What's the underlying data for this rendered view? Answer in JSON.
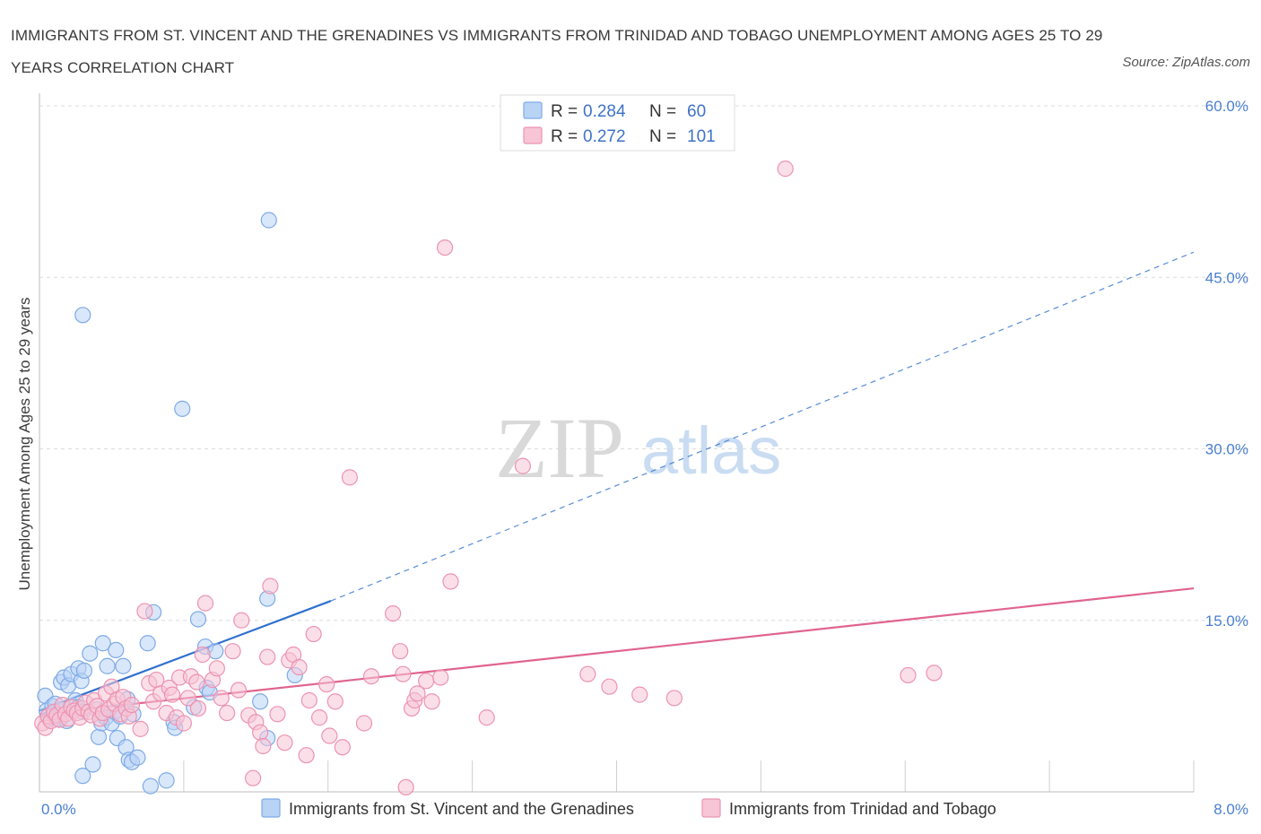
{
  "title": "IMMIGRANTS FROM ST. VINCENT AND THE GRENADINES VS IMMIGRANTS FROM TRINIDAD AND TOBAGO UNEMPLOYMENT AMONG AGES 25 TO 29 YEARS CORRELATION CHART",
  "source": "Source: ZipAtlas.com",
  "watermark": {
    "zip": "ZIP",
    "atlas": "atlas"
  },
  "legend": {
    "rows": [
      {
        "r_label": "R =",
        "r_value": "0.284",
        "n_label": "N =",
        "n_value": "60"
      },
      {
        "r_label": "R =",
        "r_value": "0.272",
        "n_label": "N =",
        "n_value": "101"
      }
    ]
  },
  "colors": {
    "blue_fill": "#b9d3f5",
    "blue_stroke": "#7eaae6",
    "blue_line": "#2f6fce",
    "pink_fill": "#f7c5d5",
    "pink_stroke": "#ec93b1",
    "pink_line": "#e0648f",
    "tick_label": "#4a7fd0",
    "grid": "#dcdcdc"
  },
  "chart_data": {
    "type": "scatter",
    "title": "IMMIGRANTS FROM ST. VINCENT AND THE GRENADINES VS IMMIGRANTS FROM TRINIDAD AND TOBAGO UNEMPLOYMENT AMONG AGES 25 TO 29 YEARS CORRELATION CHART",
    "xlabel": "",
    "ylabel": "Unemployment Among Ages 25 to 29 years",
    "xlim": [
      0,
      8
    ],
    "ylim": [
      0,
      60
    ],
    "x_tick_labels": [
      "0.0%",
      "8.0%"
    ],
    "y_ticks": [
      15,
      30,
      45,
      60
    ],
    "y_tick_labels": [
      "15.0%",
      "30.0%",
      "45.0%",
      "60.0%"
    ],
    "grid": true,
    "legend_position": "top-center",
    "series": [
      {
        "name": "Immigrants from St. Vincent and the Grenadines",
        "color": "blue",
        "R": 0.284,
        "N": 60,
        "trend": {
          "x0": 0.0,
          "y0": 7.1,
          "x1": 2.02,
          "y1": 16.7,
          "dashed_to_x": 8.0,
          "dashed_to_y": 47.2
        },
        "points": [
          [
            0.04,
            8.4
          ],
          [
            0.05,
            7.1
          ],
          [
            0.07,
            6.4
          ],
          [
            0.09,
            7.5
          ],
          [
            0.1,
            6.7
          ],
          [
            0.11,
            7.7
          ],
          [
            0.13,
            6.4
          ],
          [
            0.15,
            7.2
          ],
          [
            0.15,
            9.6
          ],
          [
            0.17,
            10.0
          ],
          [
            0.19,
            6.2
          ],
          [
            0.2,
            9.3
          ],
          [
            0.22,
            10.3
          ],
          [
            0.23,
            7.5
          ],
          [
            0.25,
            8.0
          ],
          [
            0.27,
            10.8
          ],
          [
            0.27,
            7.4
          ],
          [
            0.29,
            9.7
          ],
          [
            0.3,
            7.0
          ],
          [
            0.3,
            41.7
          ],
          [
            0.3,
            1.4
          ],
          [
            0.31,
            10.6
          ],
          [
            0.35,
            12.1
          ],
          [
            0.37,
            2.4
          ],
          [
            0.4,
            7.2
          ],
          [
            0.41,
            4.8
          ],
          [
            0.43,
            6.0
          ],
          [
            0.44,
            13.0
          ],
          [
            0.46,
            6.5
          ],
          [
            0.47,
            11.0
          ],
          [
            0.5,
            6.0
          ],
          [
            0.52,
            7.0
          ],
          [
            0.53,
            12.4
          ],
          [
            0.54,
            4.7
          ],
          [
            0.56,
            6.6
          ],
          [
            0.58,
            11.0
          ],
          [
            0.6,
            3.9
          ],
          [
            0.61,
            8.1
          ],
          [
            0.62,
            2.8
          ],
          [
            0.64,
            2.6
          ],
          [
            0.65,
            6.8
          ],
          [
            0.68,
            3.0
          ],
          [
            0.75,
            13.0
          ],
          [
            0.77,
            0.5
          ],
          [
            0.79,
            15.7
          ],
          [
            0.88,
            1.0
          ],
          [
            0.93,
            6.1
          ],
          [
            0.94,
            5.6
          ],
          [
            0.99,
            33.5
          ],
          [
            1.07,
            7.4
          ],
          [
            1.1,
            15.1
          ],
          [
            1.15,
            12.7
          ],
          [
            1.16,
            9.1
          ],
          [
            1.18,
            8.7
          ],
          [
            1.22,
            12.3
          ],
          [
            1.53,
            7.9
          ],
          [
            1.58,
            16.9
          ],
          [
            1.58,
            4.7
          ],
          [
            1.59,
            50.0
          ],
          [
            1.77,
            10.2
          ]
        ]
      },
      {
        "name": "Immigrants from Trinidad and Tobago",
        "color": "pink",
        "R": 0.272,
        "N": 101,
        "trend": {
          "x0": 0.0,
          "y0": 6.8,
          "x1": 8.0,
          "y1": 17.8
        },
        "points": [
          [
            0.02,
            6.0
          ],
          [
            0.04,
            5.6
          ],
          [
            0.06,
            6.6
          ],
          [
            0.08,
            6.2
          ],
          [
            0.1,
            7.0
          ],
          [
            0.12,
            6.7
          ],
          [
            0.14,
            6.3
          ],
          [
            0.16,
            7.6
          ],
          [
            0.18,
            6.8
          ],
          [
            0.2,
            6.4
          ],
          [
            0.22,
            7.4
          ],
          [
            0.24,
            7.1
          ],
          [
            0.26,
            6.9
          ],
          [
            0.28,
            6.5
          ],
          [
            0.3,
            7.3
          ],
          [
            0.32,
            7.8
          ],
          [
            0.34,
            7.0
          ],
          [
            0.36,
            6.7
          ],
          [
            0.38,
            8.0
          ],
          [
            0.4,
            7.5
          ],
          [
            0.42,
            6.4
          ],
          [
            0.44,
            6.9
          ],
          [
            0.46,
            8.6
          ],
          [
            0.48,
            7.2
          ],
          [
            0.5,
            9.2
          ],
          [
            0.52,
            7.7
          ],
          [
            0.54,
            8.1
          ],
          [
            0.56,
            6.8
          ],
          [
            0.58,
            8.3
          ],
          [
            0.6,
            7.3
          ],
          [
            0.62,
            6.6
          ],
          [
            0.64,
            7.6
          ],
          [
            0.7,
            5.5
          ],
          [
            0.73,
            15.8
          ],
          [
            0.76,
            9.5
          ],
          [
            0.79,
            7.9
          ],
          [
            0.81,
            9.8
          ],
          [
            0.84,
            8.6
          ],
          [
            0.88,
            6.9
          ],
          [
            0.9,
            9.1
          ],
          [
            0.92,
            8.5
          ],
          [
            0.95,
            6.5
          ],
          [
            0.97,
            10.0
          ],
          [
            1.0,
            6.0
          ],
          [
            1.03,
            8.2
          ],
          [
            1.05,
            10.1
          ],
          [
            1.09,
            9.6
          ],
          [
            1.1,
            7.3
          ],
          [
            1.13,
            12.0
          ],
          [
            1.15,
            16.5
          ],
          [
            1.2,
            9.8
          ],
          [
            1.23,
            10.8
          ],
          [
            1.26,
            8.2
          ],
          [
            1.3,
            6.9
          ],
          [
            1.34,
            12.3
          ],
          [
            1.38,
            8.9
          ],
          [
            1.4,
            15.0
          ],
          [
            1.45,
            6.7
          ],
          [
            1.48,
            1.2
          ],
          [
            1.5,
            6.1
          ],
          [
            1.53,
            5.2
          ],
          [
            1.55,
            4.0
          ],
          [
            1.58,
            11.8
          ],
          [
            1.6,
            18.0
          ],
          [
            1.65,
            6.8
          ],
          [
            1.7,
            4.3
          ],
          [
            1.73,
            11.5
          ],
          [
            1.76,
            12.0
          ],
          [
            1.8,
            10.9
          ],
          [
            1.85,
            3.2
          ],
          [
            1.87,
            8.0
          ],
          [
            1.9,
            13.8
          ],
          [
            1.94,
            6.5
          ],
          [
            1.99,
            9.4
          ],
          [
            2.01,
            4.9
          ],
          [
            2.05,
            7.9
          ],
          [
            2.1,
            3.9
          ],
          [
            2.15,
            27.5
          ],
          [
            2.25,
            6.0
          ],
          [
            2.3,
            10.1
          ],
          [
            2.45,
            15.6
          ],
          [
            2.5,
            12.3
          ],
          [
            2.52,
            10.3
          ],
          [
            2.54,
            0.4
          ],
          [
            2.58,
            7.3
          ],
          [
            2.6,
            8.0
          ],
          [
            2.62,
            8.6
          ],
          [
            2.68,
            9.7
          ],
          [
            2.72,
            7.9
          ],
          [
            2.78,
            10.0
          ],
          [
            2.81,
            47.6
          ],
          [
            2.85,
            18.4
          ],
          [
            3.1,
            6.5
          ],
          [
            3.35,
            28.5
          ],
          [
            3.8,
            10.3
          ],
          [
            3.95,
            9.2
          ],
          [
            4.16,
            8.5
          ],
          [
            4.4,
            8.2
          ],
          [
            5.17,
            54.5
          ],
          [
            6.02,
            10.2
          ],
          [
            6.2,
            10.4
          ]
        ]
      }
    ]
  },
  "bottom_legend": {
    "items": [
      {
        "label": "Immigrants from St. Vincent and the Grenadines"
      },
      {
        "label": "Immigrants from Trinidad and Tobago"
      }
    ]
  }
}
